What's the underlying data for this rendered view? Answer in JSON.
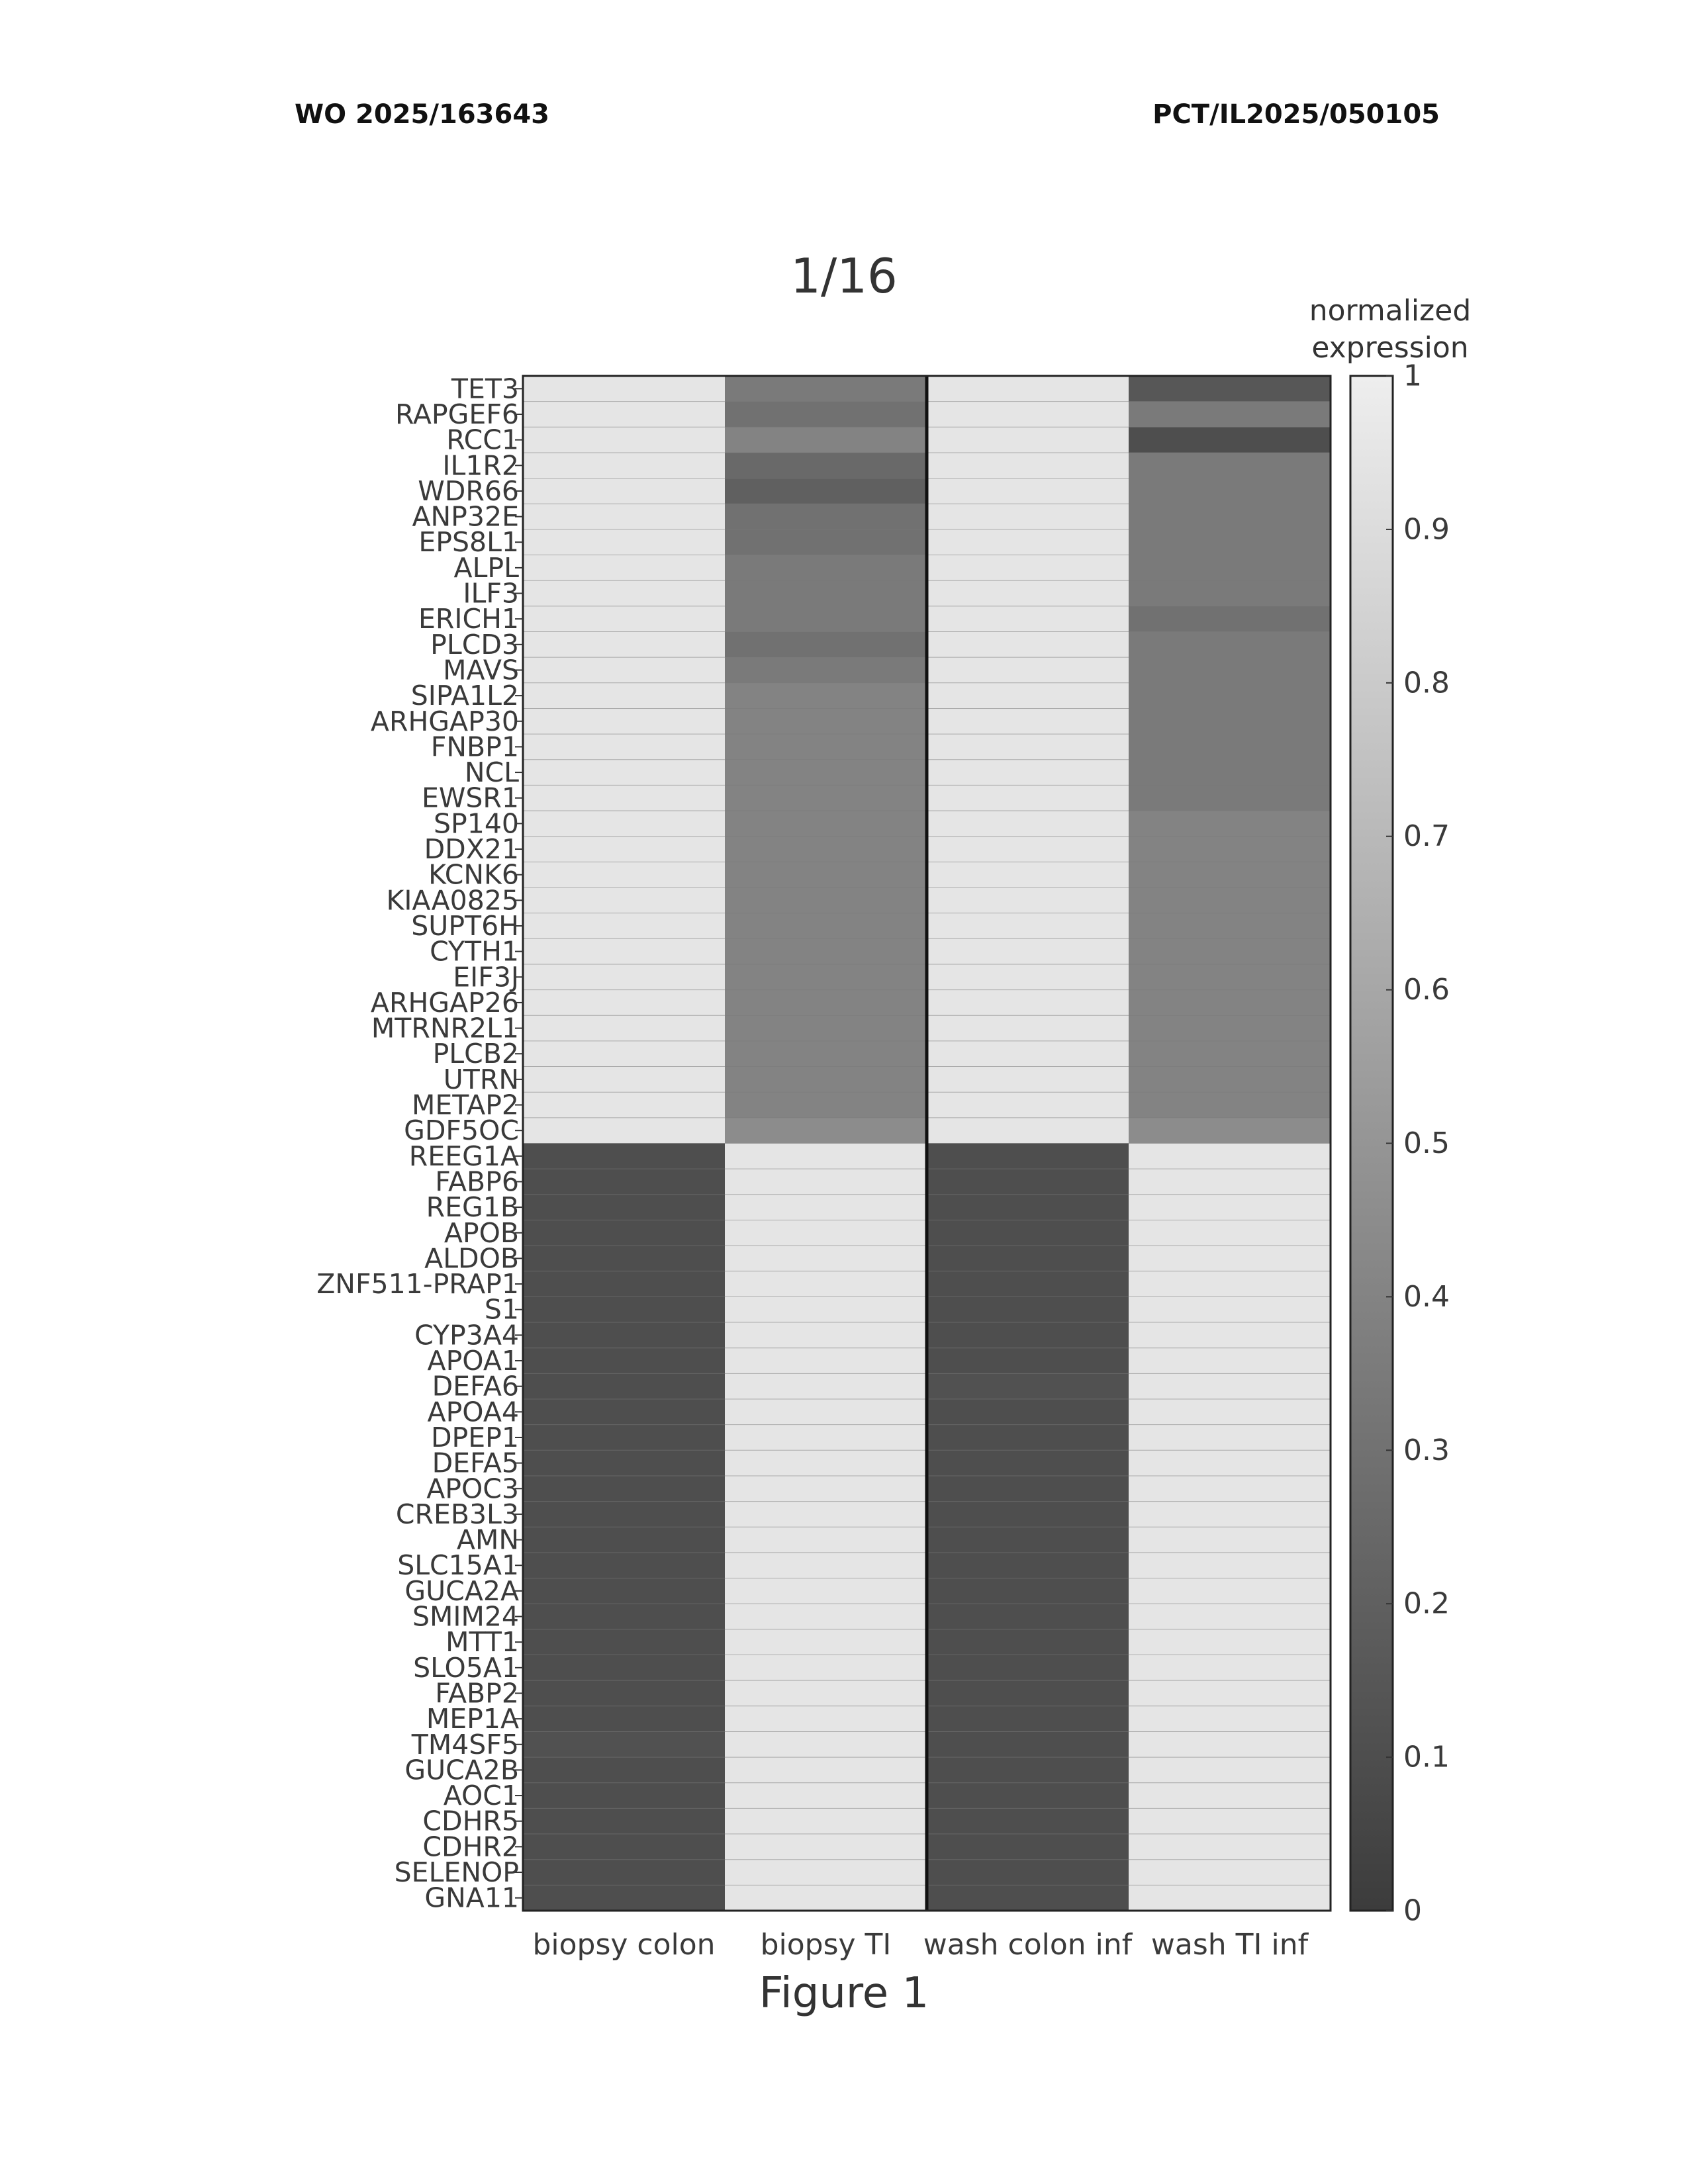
{
  "header": {
    "publication_number": "WO 2025/163643",
    "application_number": "PCT/IL2025/050105"
  },
  "page_number": "1/16",
  "figure_caption": "Figure 1",
  "colors": {
    "low": "#3c3c3c",
    "high": "#eeeeee"
  },
  "chart_data": {
    "type": "heatmap",
    "columns": [
      "biopsy colon",
      "biopsy TI",
      "wash colon inf",
      "wash TI inf"
    ],
    "rows": [
      "TET3",
      "RAPGEF6",
      "RCC1",
      "IL1R2",
      "WDR66",
      "ANP32E",
      "EPS8L1",
      "ALPL",
      "ILF3",
      "ERICH1",
      "PLCD3",
      "MAVS",
      "SIPA1L2",
      "ARHGAP30",
      "FNBP1",
      "NCL",
      "EWSR1",
      "SP140",
      "DDX21",
      "KCNK6",
      "KIAA0825",
      "SUPT6H",
      "CYTH1",
      "EIF3J",
      "ARHGAP26",
      "MTRNR2L1",
      "PLCB2",
      "UTRN",
      "METAP2",
      "GDF5OC",
      "REEG1A",
      "FABP6",
      "REG1B",
      "APOB",
      "ALDOB",
      "ZNF511-PRAP1",
      "S1",
      "CYP3A4",
      "APOA1",
      "DEFA6",
      "APOA4",
      "DPEP1",
      "DEFA5",
      "APOC3",
      "CREB3L3",
      "AMN",
      "SLC15A1",
      "GUCA2A",
      "SMIM24",
      "MTT1",
      "SLO5A1",
      "FABP2",
      "MEP1A",
      "TM4SF5",
      "GUCA2B",
      "AOC1",
      "CDHR5",
      "CDHR2",
      "SELENOP",
      "GNA11"
    ],
    "values": [
      [
        0.95,
        0.35,
        0.95,
        0.15
      ],
      [
        0.95,
        0.3,
        0.95,
        0.35
      ],
      [
        0.95,
        0.4,
        0.95,
        0.1
      ],
      [
        0.95,
        0.25,
        0.95,
        0.35
      ],
      [
        0.95,
        0.2,
        0.95,
        0.35
      ],
      [
        0.95,
        0.3,
        0.95,
        0.35
      ],
      [
        0.95,
        0.3,
        0.95,
        0.35
      ],
      [
        0.95,
        0.35,
        0.95,
        0.35
      ],
      [
        0.95,
        0.35,
        0.95,
        0.35
      ],
      [
        0.95,
        0.35,
        0.95,
        0.3
      ],
      [
        0.95,
        0.3,
        0.95,
        0.35
      ],
      [
        0.95,
        0.35,
        0.95,
        0.35
      ],
      [
        0.95,
        0.4,
        0.95,
        0.35
      ],
      [
        0.95,
        0.4,
        0.95,
        0.35
      ],
      [
        0.95,
        0.4,
        0.95,
        0.35
      ],
      [
        0.95,
        0.4,
        0.95,
        0.35
      ],
      [
        0.95,
        0.4,
        0.95,
        0.35
      ],
      [
        0.95,
        0.4,
        0.95,
        0.4
      ],
      [
        0.95,
        0.4,
        0.95,
        0.4
      ],
      [
        0.95,
        0.4,
        0.95,
        0.4
      ],
      [
        0.95,
        0.4,
        0.95,
        0.4
      ],
      [
        0.95,
        0.4,
        0.95,
        0.4
      ],
      [
        0.95,
        0.4,
        0.95,
        0.4
      ],
      [
        0.95,
        0.4,
        0.95,
        0.4
      ],
      [
        0.95,
        0.4,
        0.95,
        0.4
      ],
      [
        0.95,
        0.4,
        0.95,
        0.4
      ],
      [
        0.95,
        0.4,
        0.95,
        0.4
      ],
      [
        0.95,
        0.4,
        0.95,
        0.4
      ],
      [
        0.95,
        0.4,
        0.95,
        0.4
      ],
      [
        0.95,
        0.45,
        0.95,
        0.45
      ],
      [
        0.1,
        0.95,
        0.1,
        0.95
      ],
      [
        0.1,
        0.95,
        0.1,
        0.95
      ],
      [
        0.1,
        0.95,
        0.1,
        0.95
      ],
      [
        0.1,
        0.95,
        0.1,
        0.95
      ],
      [
        0.1,
        0.95,
        0.1,
        0.95
      ],
      [
        0.1,
        0.95,
        0.1,
        0.95
      ],
      [
        0.1,
        0.95,
        0.1,
        0.95
      ],
      [
        0.1,
        0.95,
        0.1,
        0.95
      ],
      [
        0.1,
        0.95,
        0.1,
        0.95
      ],
      [
        0.1,
        0.95,
        0.12,
        0.95
      ],
      [
        0.1,
        0.95,
        0.1,
        0.95
      ],
      [
        0.1,
        0.95,
        0.1,
        0.95
      ],
      [
        0.1,
        0.95,
        0.1,
        0.95
      ],
      [
        0.1,
        0.95,
        0.1,
        0.95
      ],
      [
        0.1,
        0.95,
        0.1,
        0.95
      ],
      [
        0.1,
        0.95,
        0.1,
        0.95
      ],
      [
        0.1,
        0.95,
        0.1,
        0.95
      ],
      [
        0.1,
        0.95,
        0.1,
        0.95
      ],
      [
        0.1,
        0.95,
        0.1,
        0.95
      ],
      [
        0.1,
        0.95,
        0.1,
        0.95
      ],
      [
        0.1,
        0.95,
        0.1,
        0.95
      ],
      [
        0.1,
        0.95,
        0.1,
        0.95
      ],
      [
        0.1,
        0.95,
        0.1,
        0.95
      ],
      [
        0.12,
        0.95,
        0.1,
        0.95
      ],
      [
        0.1,
        0.95,
        0.1,
        0.95
      ],
      [
        0.1,
        0.95,
        0.1,
        0.95
      ],
      [
        0.1,
        0.95,
        0.1,
        0.95
      ],
      [
        0.1,
        0.95,
        0.1,
        0.95
      ],
      [
        0.1,
        0.95,
        0.1,
        0.95
      ],
      [
        0.1,
        0.95,
        0.1,
        0.95
      ]
    ],
    "colorbar": {
      "title": "normalized\nexpression",
      "range": [
        0,
        1
      ],
      "ticks": [
        "0",
        "0.1",
        "0.2",
        "0.3",
        "0.4",
        "0.5",
        "0.6",
        "0.7",
        "0.8",
        "0.9",
        "1"
      ]
    }
  }
}
